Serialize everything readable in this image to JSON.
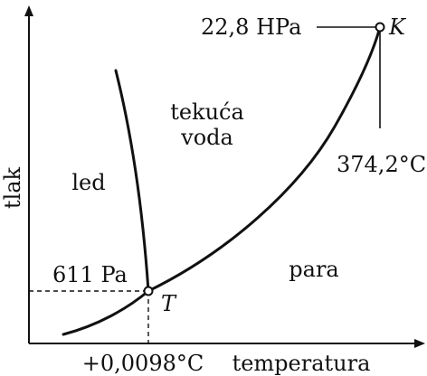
{
  "axes": {
    "y_label": "tlak",
    "x_label": "temperatura"
  },
  "regions": {
    "solid": "led",
    "liquid_line1": "tekuća",
    "liquid_line2": "voda",
    "gas": "para"
  },
  "triple_point": {
    "symbol": "T",
    "pressure_label": "611 Pa",
    "temperature_label": "+0,0098°C"
  },
  "critical_point": {
    "symbol": "K",
    "pressure_label": "22,8 HPa",
    "temperature_label": "374,2°C"
  }
}
